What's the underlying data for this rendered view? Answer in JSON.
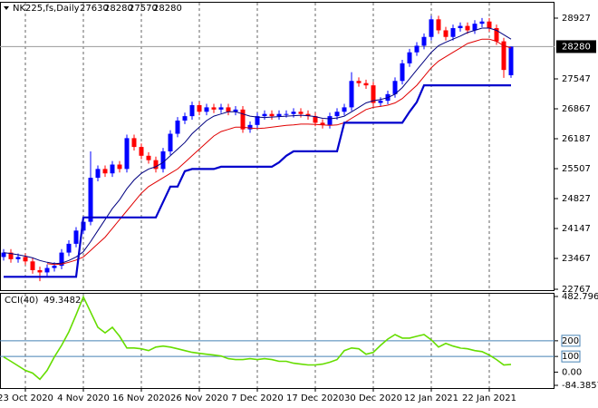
{
  "header": {
    "symbol": "NK225,fs,Daily",
    "ohlc": [
      27630,
      28280,
      27570,
      28280
    ]
  },
  "chart_data": [
    {
      "type": "candlestick",
      "categories": [
        null,
        null,
        null,
        "23 Oct 2020",
        null,
        null,
        null,
        null,
        null,
        null,
        null,
        "4 Nov 2020",
        null,
        null,
        null,
        null,
        null,
        null,
        null,
        "16 Nov 2020",
        null,
        null,
        null,
        null,
        null,
        null,
        null,
        "26 Nov 2020",
        null,
        null,
        null,
        null,
        null,
        null,
        null,
        "7 Dec 2020",
        null,
        null,
        null,
        null,
        null,
        null,
        null,
        "17 Dec 2020",
        null,
        null,
        null,
        null,
        null,
        null,
        null,
        "30 Dec 2020",
        null,
        null,
        null,
        null,
        null,
        null,
        null,
        "12 Jan 2021",
        null,
        null,
        null,
        null,
        null,
        null,
        null,
        "22 Jan 2021",
        null,
        null,
        null
      ],
      "open": [
        23500,
        23600,
        23450,
        23500,
        23400,
        23200,
        23150,
        23250,
        23300,
        23600,
        23800,
        24100,
        24300,
        25300,
        25500,
        25400,
        25600,
        25500,
        26200,
        26000,
        25800,
        25700,
        25500,
        25900,
        26300,
        26600,
        26700,
        26950,
        26800,
        26900,
        26850,
        26900,
        26800,
        26850,
        26400,
        26500,
        26700,
        26750,
        26700,
        26750,
        26750,
        26800,
        26750,
        26700,
        26550,
        26500,
        26700,
        26800,
        26900,
        27500,
        27450,
        27400,
        27000,
        27050,
        27200,
        27500,
        27900,
        28150,
        28300,
        28500,
        28900,
        28650,
        28500,
        28700,
        28750,
        28650,
        28800,
        28850,
        28700,
        28400,
        27630
      ],
      "high": [
        23680,
        23680,
        23580,
        23580,
        23480,
        23280,
        23330,
        23380,
        23680,
        23880,
        24180,
        24380,
        25900,
        25580,
        25580,
        25680,
        25680,
        26280,
        26280,
        26080,
        25880,
        25780,
        25980,
        26380,
        26680,
        26780,
        27030,
        27030,
        26980,
        26980,
        26980,
        26980,
        26930,
        26930,
        26580,
        26780,
        26830,
        26830,
        26830,
        26830,
        26880,
        26880,
        26830,
        26780,
        26630,
        26780,
        26880,
        26980,
        27700,
        27580,
        27530,
        27480,
        27130,
        27280,
        27580,
        27980,
        28230,
        28380,
        28580,
        28980,
        28980,
        28730,
        28780,
        28830,
        28830,
        28880,
        28930,
        28930,
        28780,
        28480,
        28280
      ],
      "low": [
        23420,
        23370,
        23370,
        23320,
        23120,
        22950,
        23070,
        23170,
        23220,
        23520,
        23720,
        24020,
        24220,
        25220,
        25320,
        25320,
        25420,
        25420,
        25920,
        25720,
        25620,
        25420,
        25420,
        25820,
        26220,
        26520,
        26620,
        26720,
        26720,
        26770,
        26770,
        26720,
        26720,
        26320,
        26320,
        26420,
        26620,
        26620,
        26620,
        26670,
        26670,
        26670,
        26620,
        26470,
        26420,
        26420,
        26620,
        26720,
        26820,
        27370,
        27320,
        26920,
        26920,
        26970,
        27120,
        27420,
        27820,
        28070,
        28220,
        28420,
        28570,
        28420,
        28420,
        28620,
        28570,
        28570,
        28720,
        28620,
        28320,
        27570,
        27570
      ],
      "close": [
        23600,
        23450,
        23500,
        23400,
        23200,
        23150,
        23250,
        23300,
        23600,
        23800,
        24100,
        24300,
        25300,
        25500,
        25400,
        25600,
        25500,
        26200,
        26000,
        25800,
        25700,
        25500,
        25900,
        26300,
        26600,
        26700,
        26950,
        26800,
        26900,
        26850,
        26900,
        26800,
        26850,
        26400,
        26500,
        26700,
        26750,
        26700,
        26750,
        26750,
        26800,
        26750,
        26700,
        26550,
        26500,
        26700,
        26800,
        26900,
        27500,
        27450,
        27400,
        27000,
        27050,
        27200,
        27500,
        27900,
        28150,
        28300,
        28500,
        28900,
        28650,
        28500,
        28700,
        28750,
        28650,
        28800,
        28850,
        28700,
        28400,
        27750,
        28280
      ],
      "up_color": "#0000ff",
      "down_color": "#ff0000",
      "ylim": [
        22747,
        29298
      ],
      "yticks": [
        28927,
        27547,
        26867,
        26187,
        25507,
        24827,
        24147,
        23467,
        22767
      ],
      "current_price": 28280,
      "grid": true,
      "overlays": [
        {
          "color": "#000080",
          "width": 1,
          "values": [
            23600,
            23580,
            23550,
            23520,
            23480,
            23420,
            23380,
            23350,
            23360,
            23420,
            23500,
            23620,
            23850,
            24100,
            24350,
            24600,
            24800,
            25050,
            25250,
            25400,
            25500,
            25550,
            25650,
            25800,
            25950,
            26100,
            26300,
            26450,
            26600,
            26700,
            26750,
            26800,
            26800,
            26750,
            26700,
            26680,
            26670,
            26680,
            26690,
            26700,
            26710,
            26720,
            26710,
            26690,
            26650,
            26640,
            26660,
            26700,
            26800,
            26900,
            27000,
            27050,
            27080,
            27120,
            27200,
            27350,
            27550,
            27750,
            27950,
            28150,
            28300,
            28380,
            28450,
            28520,
            28600,
            28650,
            28700,
            28700,
            28650,
            28550,
            28450
          ]
        },
        {
          "color": "#e00000",
          "width": 1,
          "values": [
            null,
            null,
            null,
            null,
            null,
            null,
            23350,
            23330,
            23340,
            23380,
            23430,
            23500,
            23650,
            23800,
            23950,
            24150,
            24350,
            24550,
            24750,
            24950,
            25100,
            25200,
            25300,
            25400,
            25500,
            25650,
            25800,
            25950,
            26100,
            26250,
            26350,
            26400,
            26450,
            26450,
            26430,
            26420,
            26430,
            26450,
            26470,
            26490,
            26500,
            26520,
            26520,
            26510,
            26500,
            26490,
            26500,
            26550,
            26650,
            26750,
            26850,
            26900,
            26920,
            26950,
            27000,
            27100,
            27250,
            27400,
            27600,
            27800,
            27950,
            28050,
            28150,
            28250,
            28350,
            28400,
            28450,
            28450,
            28400,
            28300,
            28250
          ]
        },
        {
          "color": "#0000cc",
          "width": 2.2,
          "values": [
            23050,
            23050,
            23050,
            23050,
            23050,
            23050,
            23050,
            23050,
            23050,
            23050,
            23050,
            24400,
            24400,
            24400,
            24400,
            24400,
            24400,
            24400,
            24400,
            24400,
            24400,
            24400,
            24750,
            25100,
            25100,
            25450,
            25500,
            25500,
            25500,
            25500,
            25550,
            25550,
            25550,
            25550,
            25550,
            25550,
            25550,
            25550,
            25650,
            25800,
            25900,
            25900,
            25900,
            25900,
            25900,
            25900,
            25900,
            26550,
            26550,
            26550,
            26550,
            26550,
            26550,
            26550,
            26550,
            26550,
            26800,
            27020,
            27400,
            27400,
            27400,
            27400,
            27400,
            27400,
            27400,
            27400,
            27400,
            27400,
            27400,
            27400,
            27400
          ]
        }
      ]
    },
    {
      "type": "line",
      "title": "CCI(40)",
      "last_value": 49.3482,
      "color": "#66dd00",
      "values": [
        97,
        69,
        40,
        11,
        -6,
        -46,
        11,
        97,
        171,
        257,
        366,
        480,
        383,
        286,
        251,
        286,
        229,
        154,
        154,
        149,
        137,
        160,
        166,
        160,
        149,
        137,
        126,
        120,
        114,
        109,
        103,
        86,
        80,
        80,
        86,
        80,
        86,
        80,
        69,
        69,
        57,
        51,
        46,
        46,
        51,
        63,
        80,
        137,
        154,
        149,
        114,
        126,
        171,
        211,
        240,
        217,
        217,
        229,
        240,
        206,
        160,
        183,
        166,
        154,
        149,
        137,
        131,
        109,
        80,
        46,
        49.3482
      ],
      "ylim": [
        -84.3857,
        482.7966
      ],
      "yticks": [
        482.7966,
        200,
        100,
        {
          "value": 0,
          "label": "0.00"
        },
        -84.3857
      ],
      "levels": [
        200,
        100
      ],
      "level_color": "#4682b4"
    }
  ]
}
